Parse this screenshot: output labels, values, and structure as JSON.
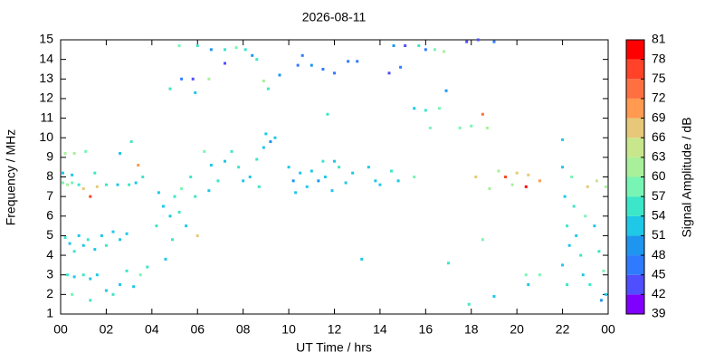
{
  "chart_data": {
    "type": "scatter",
    "title": "2026-08-11",
    "xlabel": "UT Time / hrs",
    "ylabel": "Frequency / MHz",
    "xlim": [
      0,
      24
    ],
    "xticks": [
      {
        "value": 0,
        "label": "00"
      },
      {
        "value": 2,
        "label": "02"
      },
      {
        "value": 4,
        "label": "04"
      },
      {
        "value": 6,
        "label": "06"
      },
      {
        "value": 8,
        "label": "08"
      },
      10,
      12,
      14,
      16,
      18,
      20,
      22,
      {
        "value": 24,
        "label": "00"
      }
    ],
    "ylim": [
      1,
      15
    ],
    "yticks": [
      1,
      2,
      3,
      4,
      5,
      6,
      7,
      8,
      9,
      10,
      11,
      12,
      13,
      14,
      15
    ],
    "colorbar": {
      "label": "Signal Amplitude / dB",
      "lim": [
        39,
        81
      ],
      "ticks": [
        39,
        42,
        45,
        48,
        51,
        54,
        57,
        60,
        63,
        66,
        69,
        72,
        75,
        78,
        81
      ],
      "colors": [
        "#8000ff",
        "#4f4fff",
        "#2f7bff",
        "#1e96f0",
        "#1ec8e6",
        "#3ce6c8",
        "#78f5b4",
        "#a8f09a",
        "#c8e68c",
        "#e6c878",
        "#ff9a50",
        "#ff7040",
        "#ff4228",
        "#ff0000"
      ]
    },
    "points": [
      [
        0.1,
        7.7,
        57
      ],
      [
        0.3,
        7.6,
        60
      ],
      [
        0.5,
        7.7,
        57
      ],
      [
        0.8,
        7.6,
        54
      ],
      [
        1.0,
        7.4,
        66
      ],
      [
        1.3,
        7.0,
        75
      ],
      [
        1.6,
        7.5,
        66
      ],
      [
        0.2,
        9.2,
        60
      ],
      [
        0.6,
        9.2,
        60
      ],
      [
        1.1,
        9.3,
        57
      ],
      [
        1.5,
        8.2,
        54
      ],
      [
        0.1,
        8.2,
        51
      ],
      [
        0.5,
        8.1,
        51
      ],
      [
        0.2,
        4.9,
        54
      ],
      [
        0.4,
        4.6,
        51
      ],
      [
        0.6,
        4.2,
        54
      ],
      [
        0.8,
        5.0,
        51
      ],
      [
        1.0,
        4.5,
        51
      ],
      [
        1.2,
        4.8,
        54
      ],
      [
        1.5,
        4.3,
        51
      ],
      [
        1.8,
        5.0,
        51
      ],
      [
        2.0,
        4.5,
        54
      ],
      [
        2.3,
        5.2,
        51
      ],
      [
        2.6,
        4.8,
        51
      ],
      [
        2.9,
        5.1,
        51
      ],
      [
        0.3,
        3.0,
        54
      ],
      [
        0.6,
        2.9,
        51
      ],
      [
        1.0,
        3.0,
        54
      ],
      [
        1.3,
        2.8,
        51
      ],
      [
        1.6,
        3.0,
        51
      ],
      [
        2.0,
        2.2,
        51
      ],
      [
        2.3,
        2.0,
        54
      ],
      [
        2.6,
        2.5,
        51
      ],
      [
        2.9,
        3.2,
        54
      ],
      [
        3.2,
        2.4,
        51
      ],
      [
        3.5,
        3.0,
        57
      ],
      [
        3.8,
        3.4,
        54
      ],
      [
        0.5,
        2.0,
        57
      ],
      [
        1.3,
        1.7,
        54
      ],
      [
        2.0,
        7.6,
        54
      ],
      [
        2.5,
        7.6,
        51
      ],
      [
        3.0,
        7.6,
        54
      ],
      [
        3.3,
        7.7,
        51
      ],
      [
        2.6,
        9.2,
        51
      ],
      [
        3.1,
        9.8,
        54
      ],
      [
        3.4,
        8.6,
        69
      ],
      [
        3.6,
        8.0,
        54
      ],
      [
        4.2,
        5.5,
        54
      ],
      [
        4.5,
        6.5,
        51
      ],
      [
        4.8,
        6.0,
        51
      ],
      [
        5.0,
        7.0,
        54
      ],
      [
        5.3,
        7.4,
        57
      ],
      [
        5.7,
        8.0,
        54
      ],
      [
        4.6,
        3.8,
        51
      ],
      [
        4.9,
        4.8,
        54
      ],
      [
        5.5,
        5.5,
        51
      ],
      [
        4.3,
        7.2,
        51
      ],
      [
        5.9,
        7.0,
        54
      ],
      [
        5.2,
        6.2,
        54
      ],
      [
        6.0,
        5.0,
        66
      ],
      [
        6.3,
        9.3,
        57
      ],
      [
        6.6,
        8.6,
        51
      ],
      [
        6.9,
        7.8,
        54
      ],
      [
        6.5,
        7.3,
        51
      ],
      [
        7.2,
        8.8,
        51
      ],
      [
        7.5,
        9.3,
        54
      ],
      [
        7.8,
        8.5,
        54
      ],
      [
        8.0,
        7.8,
        51
      ],
      [
        8.3,
        8.0,
        51
      ],
      [
        8.6,
        8.9,
        54
      ],
      [
        9.0,
        10.2,
        51
      ],
      [
        9.2,
        9.8,
        48
      ],
      [
        9.4,
        10.0,
        51
      ],
      [
        8.9,
        9.5,
        51
      ],
      [
        8.7,
        7.5,
        54
      ],
      [
        10.0,
        8.5,
        51
      ],
      [
        10.2,
        7.8,
        48
      ],
      [
        10.5,
        8.2,
        51
      ],
      [
        10.8,
        7.5,
        51
      ],
      [
        11.0,
        8.3,
        51
      ],
      [
        11.3,
        7.8,
        48
      ],
      [
        11.6,
        8.0,
        51
      ],
      [
        11.9,
        7.3,
        51
      ],
      [
        12.2,
        8.5,
        54
      ],
      [
        12.5,
        7.7,
        51
      ],
      [
        12.8,
        8.2,
        51
      ],
      [
        10.3,
        7.2,
        51
      ],
      [
        11.5,
        8.8,
        54
      ],
      [
        12.0,
        8.8,
        51
      ],
      [
        13.5,
        8.5,
        51
      ],
      [
        13.8,
        7.8,
        51
      ],
      [
        14.0,
        7.6,
        51
      ],
      [
        14.5,
        8.3,
        54
      ],
      [
        14.8,
        7.8,
        51
      ],
      [
        13.2,
        3.8,
        51
      ],
      [
        5.2,
        14.7,
        57
      ],
      [
        6.0,
        14.7,
        54
      ],
      [
        6.6,
        14.5,
        48
      ],
      [
        7.2,
        14.5,
        54
      ],
      [
        7.7,
        14.6,
        57
      ],
      [
        8.1,
        14.5,
        54
      ],
      [
        8.4,
        14.2,
        48
      ],
      [
        5.3,
        13.0,
        45
      ],
      [
        5.8,
        13.0,
        42
      ],
      [
        6.5,
        13.0,
        60
      ],
      [
        4.8,
        12.5,
        54
      ],
      [
        5.9,
        12.3,
        51
      ],
      [
        7.2,
        13.8,
        42
      ],
      [
        8.6,
        14.0,
        54
      ],
      [
        8.9,
        12.9,
        60
      ],
      [
        9.6,
        13.2,
        48
      ],
      [
        10.4,
        13.7,
        45
      ],
      [
        11.0,
        13.7,
        48
      ],
      [
        11.5,
        13.5,
        45
      ],
      [
        12.0,
        13.3,
        45
      ],
      [
        12.6,
        13.9,
        45
      ],
      [
        13.0,
        13.9,
        45
      ],
      [
        11.7,
        11.2,
        54
      ],
      [
        10.6,
        14.2,
        45
      ],
      [
        9.1,
        12.5,
        54
      ],
      [
        14.6,
        14.7,
        48
      ],
      [
        15.1,
        14.7,
        42
      ],
      [
        15.7,
        14.7,
        54
      ],
      [
        16.0,
        14.5,
        45
      ],
      [
        16.4,
        14.5,
        57
      ],
      [
        16.8,
        14.4,
        60
      ],
      [
        14.9,
        13.6,
        45
      ],
      [
        14.4,
        13.3,
        42
      ],
      [
        16.9,
        12.4,
        48
      ],
      [
        15.5,
        11.5,
        51
      ],
      [
        16.0,
        11.4,
        54
      ],
      [
        16.6,
        11.5,
        57
      ],
      [
        17.5,
        10.5,
        57
      ],
      [
        18.0,
        10.6,
        57
      ],
      [
        18.7,
        10.5,
        60
      ],
      [
        18.5,
        11.2,
        72
      ],
      [
        17.8,
        14.9,
        42
      ],
      [
        18.3,
        15.0,
        42
      ],
      [
        19.0,
        14.9,
        45
      ],
      [
        16.2,
        10.5,
        57
      ],
      [
        18.2,
        8.0,
        66
      ],
      [
        19.2,
        8.3,
        60
      ],
      [
        19.5,
        8.0,
        75
      ],
      [
        20.0,
        8.2,
        66
      ],
      [
        20.5,
        8.1,
        66
      ],
      [
        20.4,
        7.5,
        78
      ],
      [
        21.0,
        7.8,
        69
      ],
      [
        19.8,
        7.6,
        60
      ],
      [
        17.9,
        1.5,
        54
      ],
      [
        19.0,
        1.9,
        51
      ],
      [
        20.5,
        2.5,
        51
      ],
      [
        20.4,
        3.0,
        57
      ],
      [
        21.0,
        3.0,
        57
      ],
      [
        22.0,
        9.9,
        51
      ],
      [
        22.0,
        8.5,
        51
      ],
      [
        22.1,
        7.0,
        51
      ],
      [
        22.2,
        5.5,
        54
      ],
      [
        22.3,
        4.5,
        51
      ],
      [
        22.0,
        3.5,
        51
      ],
      [
        22.2,
        2.5,
        54
      ],
      [
        22.5,
        6.5,
        54
      ],
      [
        22.6,
        5.0,
        51
      ],
      [
        22.8,
        4.0,
        54
      ],
      [
        22.9,
        3.0,
        51
      ],
      [
        23.2,
        2.5,
        54
      ],
      [
        23.4,
        5.5,
        51
      ],
      [
        23.6,
        4.2,
        54
      ],
      [
        23.8,
        3.2,
        57
      ],
      [
        23.9,
        2.0,
        51
      ],
      [
        23.5,
        7.8,
        63
      ],
      [
        23.1,
        7.5,
        66
      ],
      [
        23.9,
        7.5,
        60
      ],
      [
        22.4,
        8.0,
        57
      ],
      [
        23.0,
        6.0,
        57
      ],
      [
        23.7,
        1.7,
        48
      ],
      [
        18.8,
        7.4,
        60
      ],
      [
        18.5,
        4.8,
        57
      ],
      [
        15.5,
        8.0,
        57
      ],
      [
        17.0,
        3.6,
        54
      ]
    ]
  }
}
